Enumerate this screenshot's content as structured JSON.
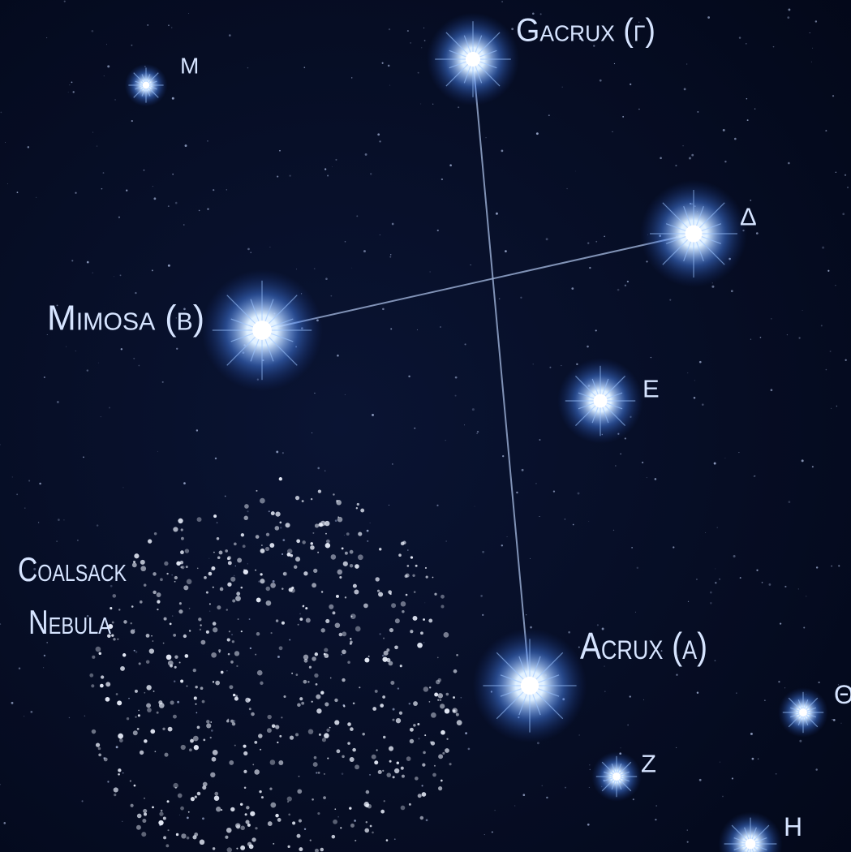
{
  "stars": [
    {
      "label": "Gacrux (γ)"
    },
    {
      "label": "μ"
    },
    {
      "label": "δ"
    },
    {
      "label": "Mimosa (β)"
    },
    {
      "label": "ε"
    },
    {
      "label": "Acrux (α)"
    },
    {
      "label": "θ"
    },
    {
      "label": "ζ"
    },
    {
      "label": "η"
    }
  ],
  "nebula": {
    "lines": [
      "Coalsack",
      "Nebula"
    ]
  }
}
